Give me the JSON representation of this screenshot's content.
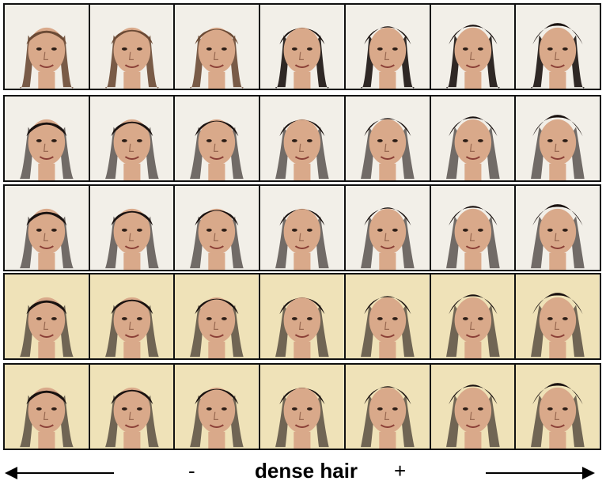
{
  "figure": {
    "rows": 5,
    "columns": 7,
    "attribute_label": "dense hair",
    "minus_sign": "-",
    "plus_sign": "+"
  },
  "colors": {
    "skin": "#d9a98a",
    "hair_dark": "#1a1210",
    "hair_light": "#6b4a35",
    "background_light": "#f2efe8",
    "background_warm": "#efe2b8"
  }
}
